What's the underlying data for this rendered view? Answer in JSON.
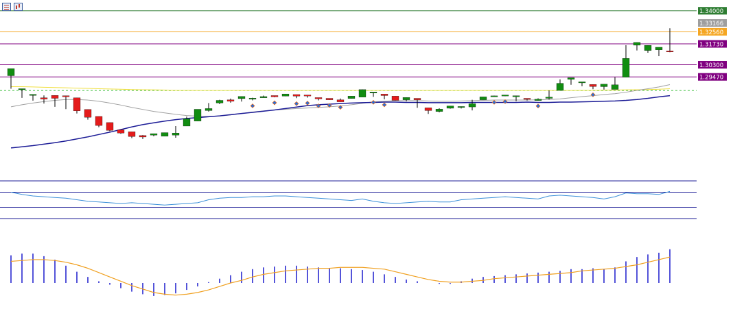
{
  "toolbar": {
    "icons": [
      "quotes-list-icon",
      "chart-properties-icon"
    ]
  },
  "chart_data": {
    "type": "candlestick",
    "instrument_panel": {
      "price_labels": [
        {
          "value": 1.34,
          "text": "1.34000",
          "color": "#2e7d32",
          "line": true
        },
        {
          "value": 1.33166,
          "text": "1.33166",
          "color": "#9e9e9e",
          "line": false
        },
        {
          "value": 1.3256,
          "text": "1.32560",
          "color": "#f5a623",
          "line": true
        },
        {
          "value": 1.3173,
          "text": "1.31730",
          "color": "#800080",
          "line": true
        },
        {
          "value": 1.303,
          "text": "1.30300",
          "color": "#800080",
          "line": true
        },
        {
          "value": 1.2947,
          "text": "1.29470",
          "color": "#800080",
          "line": true
        }
      ],
      "dashed_level": 1.2854,
      "ylim": [
        1.23,
        1.3455
      ],
      "candles": [
        [
          1.2955,
          1.3004,
          1.2885,
          1.2866
        ],
        [
          1.2865,
          1.2866,
          1.2803,
          1.2823
        ],
        [
          1.2823,
          1.2827,
          1.2784,
          1.2804
        ],
        [
          1.2804,
          1.2795,
          1.2764,
          1.282
        ],
        [
          1.282,
          1.28,
          1.2742,
          1.2818
        ],
        [
          1.2818,
          1.2814,
          1.2726,
          1.2804
        ],
        [
          1.2804,
          1.2714,
          1.2696,
          1.2724
        ],
        [
          1.2724,
          1.267,
          1.2654,
          1.2676
        ],
        [
          1.2676,
          1.2614,
          1.2602,
          1.2634
        ],
        [
          1.2634,
          1.258,
          1.2574,
          1.2584
        ],
        [
          1.2584,
          1.2562,
          1.2557,
          1.2571
        ],
        [
          1.2571,
          1.2538,
          1.2527,
          1.2545
        ],
        [
          1.2545,
          1.2535,
          1.2521,
          1.2548
        ],
        [
          1.2548,
          1.2558,
          1.255,
          1.254
        ],
        [
          1.254,
          1.2565,
          1.2553,
          1.2548
        ],
        [
          1.2548,
          1.2562,
          1.253,
          1.261
        ],
        [
          1.261,
          1.266,
          1.2675,
          1.2644
        ],
        [
          1.2644,
          1.2725,
          1.2697,
          1.2716
        ],
        [
          1.2716,
          1.273,
          1.2709,
          1.2768
        ],
        [
          1.2768,
          1.2786,
          1.276,
          1.279
        ],
        [
          1.279,
          1.278,
          1.277,
          1.2798
        ],
        [
          1.2798,
          1.2813,
          1.2778,
          1.2795
        ],
        [
          1.2795,
          1.2801,
          1.2786,
          1.2804
        ],
        [
          1.2804,
          1.2812,
          1.2808,
          1.2819
        ],
        [
          1.2819,
          1.281,
          1.2807,
          1.2815
        ],
        [
          1.2815,
          1.283,
          1.2814,
          1.2826
        ],
        [
          1.2826,
          1.2815,
          1.2801,
          1.2823
        ],
        [
          1.2823,
          1.282,
          1.2813,
          1.2805
        ],
        [
          1.2805,
          1.2797,
          1.2786,
          1.28
        ],
        [
          1.28,
          1.279,
          1.2789,
          1.279
        ],
        [
          1.279,
          1.2776,
          1.2797,
          1.2799
        ],
        [
          1.2799,
          1.2815,
          1.2815,
          1.2808
        ],
        [
          1.2808,
          1.286,
          1.2861,
          1.2838
        ],
        [
          1.2838,
          1.2843,
          1.281,
          1.2829
        ],
        [
          1.2829,
          1.2819,
          1.2793,
          1.2815
        ],
        [
          1.2815,
          1.2786,
          1.2785,
          1.279
        ],
        [
          1.279,
          1.2806,
          1.2779,
          1.28
        ],
        [
          1.28,
          1.279,
          1.277,
          1.2735
        ],
        [
          1.2735,
          1.2716,
          1.2693,
          1.271
        ],
        [
          1.271,
          1.2726,
          1.2704,
          1.2732
        ],
        [
          1.2732,
          1.2748,
          1.2729,
          1.2743
        ],
        [
          1.2743,
          1.2744,
          1.273,
          1.2741
        ],
        [
          1.2741,
          1.2763,
          1.2717,
          1.279
        ],
        [
          1.279,
          1.281,
          1.2798,
          1.281
        ],
        [
          1.281,
          1.2817,
          1.2813,
          1.2818
        ],
        [
          1.2818,
          1.2823,
          1.2817,
          1.2815
        ],
        [
          1.2815,
          1.2818,
          1.278,
          1.28
        ],
        [
          1.28,
          1.2795,
          1.2787,
          1.2785
        ],
        [
          1.2785,
          1.2794,
          1.2786,
          1.28
        ],
        [
          1.28,
          1.2808,
          1.2792,
          1.2854
        ],
        [
          1.2854,
          1.2903,
          1.2909,
          1.293
        ],
        [
          1.293,
          1.2941,
          1.2893,
          1.291
        ],
        [
          1.291,
          1.2913,
          1.2883,
          1.2895
        ],
        [
          1.2895,
          1.2881,
          1.2862,
          1.288
        ],
        [
          1.288,
          1.2897,
          1.286,
          1.2861
        ],
        [
          1.2861,
          1.2893,
          1.2862,
          1.2945
        ],
        [
          1.2945,
          1.3074,
          1.3035,
          1.3164
        ],
        [
          1.3164,
          1.3183,
          1.3135,
          1.3128
        ],
        [
          1.3128,
          1.3163,
          1.3112,
          1.3132
        ],
        [
          1.3132,
          1.315,
          1.3089,
          1.3125
        ],
        [
          1.3125,
          1.3122,
          1.3116,
          1.328
        ]
      ]
    },
    "ma_yellow": [
      1.288,
      1.288,
      1.2878,
      1.2876,
      1.2874,
      1.2872,
      1.287,
      1.2868,
      1.2866,
      1.2864,
      1.2862,
      1.286,
      1.2859,
      1.2858,
      1.2857,
      1.2856,
      1.2856,
      1.2855,
      1.2855,
      1.2855,
      1.2855,
      1.2855,
      1.2855,
      1.2855,
      1.2855,
      1.2855,
      1.2855,
      1.2855,
      1.2855,
      1.2855,
      1.2855,
      1.2855,
      1.2855,
      1.2855,
      1.2855,
      1.2855,
      1.2855,
      1.2855,
      1.2855,
      1.2855,
      1.2855,
      1.2855,
      1.2855,
      1.2855,
      1.2855,
      1.2855,
      1.2855,
      1.2855,
      1.2855,
      1.2855,
      1.2855,
      1.2855,
      1.2856,
      1.2856,
      1.2857,
      1.2857,
      1.2858,
      1.2859,
      1.286,
      1.2862,
      1.2866
    ],
    "ma_gray": [
      1.2742,
      1.2756,
      1.2768,
      1.2778,
      1.2786,
      1.2792,
      1.2792,
      1.2788,
      1.278,
      1.2768,
      1.2754,
      1.2738,
      1.2724,
      1.271,
      1.27,
      1.269,
      1.2682,
      1.2678,
      1.2676,
      1.2678,
      1.2686,
      1.2696,
      1.2706,
      1.2714,
      1.272,
      1.2725,
      1.273,
      1.2734,
      1.2738,
      1.2742,
      1.2748,
      1.2756,
      1.2766,
      1.2776,
      1.278,
      1.2784,
      1.2784,
      1.2784,
      1.2782,
      1.278,
      1.278,
      1.2782,
      1.2784,
      1.2786,
      1.2788,
      1.2788,
      1.2788,
      1.2788,
      1.279,
      1.2792,
      1.2796,
      1.2804,
      1.2812,
      1.2818,
      1.2826,
      1.2832,
      1.2842,
      1.2854,
      1.2866,
      1.2878,
      1.2894
    ],
    "ma_navy": [
      1.246,
      1.2468,
      1.2476,
      1.2486,
      1.2496,
      1.2508,
      1.2522,
      1.2536,
      1.2552,
      1.2568,
      1.2586,
      1.2604,
      1.262,
      1.2632,
      1.2644,
      1.2654,
      1.2662,
      1.2668,
      1.2674,
      1.268,
      1.2688,
      1.2696,
      1.2704,
      1.2712,
      1.272,
      1.273,
      1.274,
      1.275,
      1.2756,
      1.276,
      1.2764,
      1.2768,
      1.277,
      1.2772,
      1.2774,
      1.2774,
      1.2772,
      1.2772,
      1.277,
      1.277,
      1.277,
      1.277,
      1.2772,
      1.2772,
      1.2772,
      1.2772,
      1.2772,
      1.2774,
      1.2772,
      1.2772,
      1.2774,
      1.2774,
      1.2776,
      1.2778,
      1.278,
      1.2782,
      1.2786,
      1.2792,
      1.28,
      1.281,
      1.2818
    ],
    "rsi_panel": {
      "ylim": [
        0,
        100
      ],
      "levels": [
        70,
        30
      ],
      "values": [
        70,
        64,
        60,
        58,
        56,
        54,
        50,
        46,
        44,
        42,
        40,
        42,
        40,
        38,
        36,
        38,
        40,
        42,
        50,
        54,
        56,
        56,
        58,
        58,
        60,
        60,
        58,
        56,
        54,
        52,
        50,
        48,
        52,
        46,
        42,
        40,
        42,
        44,
        46,
        44,
        44,
        50,
        52,
        54,
        56,
        58,
        56,
        54,
        52,
        60,
        62,
        60,
        58,
        56,
        52,
        58,
        68,
        66,
        66,
        64,
        72
      ]
    },
    "macd_panel": {
      "ylim": [
        -0.0042,
        0.0042
      ],
      "histogram": [
        0.0032,
        0.0034,
        0.0034,
        0.0031,
        0.0027,
        0.002,
        0.0013,
        0.0007,
        0.0002,
        -0.0002,
        -0.0006,
        -0.001,
        -0.0013,
        -0.0015,
        -0.0014,
        -0.0012,
        -0.0008,
        -0.0004,
        0.0001,
        0.0005,
        0.0009,
        0.0013,
        0.0016,
        0.0018,
        0.0019,
        0.002,
        0.002,
        0.0019,
        0.0018,
        0.0017,
        0.0017,
        0.0016,
        0.0015,
        0.0013,
        0.001,
        0.0007,
        0.0004,
        0.0002,
        0.0,
        -0.0001,
        -0.0001,
        0.0002,
        0.0005,
        0.0007,
        0.0008,
        0.0009,
        0.001,
        0.0011,
        0.0012,
        0.0013,
        0.0014,
        0.0016,
        0.0016,
        0.0017,
        0.0016,
        0.0018,
        0.0025,
        0.003,
        0.0033,
        0.0035,
        0.0039
      ],
      "signal": [
        0.0025,
        0.0026,
        0.0027,
        0.0027,
        0.0026,
        0.0024,
        0.0021,
        0.0017,
        0.0012,
        0.0007,
        0.0002,
        -0.0003,
        -0.0007,
        -0.0011,
        -0.0013,
        -0.0014,
        -0.0013,
        -0.0011,
        -0.0008,
        -0.0004,
        0.0,
        0.0003,
        0.0007,
        0.001,
        0.0012,
        0.0014,
        0.0015,
        0.0016,
        0.0017,
        0.0017,
        0.0018,
        0.0018,
        0.0018,
        0.0017,
        0.0016,
        0.0013,
        0.001,
        0.0007,
        0.0004,
        0.0002,
        0.0001,
        0.0001,
        0.0002,
        0.0003,
        0.0005,
        0.0006,
        0.0007,
        0.0008,
        0.0009,
        0.001,
        0.0011,
        0.0012,
        0.0014,
        0.0015,
        0.0016,
        0.0017,
        0.0019,
        0.0021,
        0.0024,
        0.0027,
        0.003
      ]
    },
    "markers": [
      {
        "index": 22,
        "type": "diamond"
      },
      {
        "index": 24,
        "type": "diamond"
      },
      {
        "index": 26,
        "type": "diamond"
      },
      {
        "index": 27,
        "type": "diamond"
      },
      {
        "index": 28,
        "type": "diamond"
      },
      {
        "index": 29,
        "type": "diamond"
      },
      {
        "index": 30,
        "type": "diamond"
      },
      {
        "index": 33,
        "type": "diamond"
      },
      {
        "index": 34,
        "type": "diamond"
      },
      {
        "index": 44,
        "type": "diamond"
      },
      {
        "index": 45,
        "type": "diamond"
      },
      {
        "index": 48,
        "type": "diamond"
      },
      {
        "index": 53,
        "type": "diamond"
      }
    ],
    "colors": {
      "bull": "#118d11",
      "bear": "#e41b1b",
      "wick": "#000000",
      "ma_yellow": "#f0e040",
      "ma_gray": "#a0a0a0",
      "ma_navy": "#1b1b96",
      "dashed": "#33bb33",
      "rsi": "#3a8fd8",
      "rsi_band": "#1b1b96",
      "macd_hist": "#1b1bcc",
      "macd_signal": "#f0a020",
      "label_text": "#ffffff"
    }
  }
}
